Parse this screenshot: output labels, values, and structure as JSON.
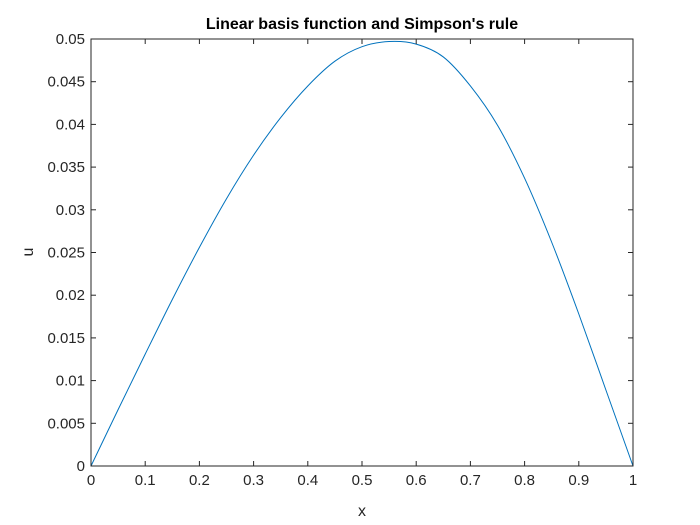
{
  "chart_data": {
    "type": "line",
    "title": "Linear basis function and Simpson's rule",
    "xlabel": "x",
    "ylabel": "u",
    "xlim": [
      0,
      1
    ],
    "ylim": [
      0,
      0.05
    ],
    "xticks": [
      0,
      0.1,
      0.2,
      0.3,
      0.4,
      0.5,
      0.6,
      0.7,
      0.8,
      0.9,
      1
    ],
    "xtick_labels": [
      "0",
      "0.1",
      "0.2",
      "0.3",
      "0.4",
      "0.5",
      "0.6",
      "0.7",
      "0.8",
      "0.9",
      "1"
    ],
    "yticks": [
      0,
      0.005,
      0.01,
      0.015,
      0.02,
      0.025,
      0.03,
      0.035,
      0.04,
      0.045,
      0.05
    ],
    "ytick_labels": [
      "0",
      "0.005",
      "0.01",
      "0.015",
      "0.02",
      "0.025",
      "0.03",
      "0.035",
      "0.04",
      "0.045",
      "0.05"
    ],
    "grid": false,
    "series": [
      {
        "color": "#0072BD",
        "x": [
          0,
          0.05,
          0.1,
          0.15,
          0.2,
          0.25,
          0.3,
          0.35,
          0.4,
          0.45,
          0.5,
          0.55,
          0.6,
          0.65,
          0.7,
          0.75,
          0.8,
          0.85,
          0.9,
          0.95,
          1
        ],
        "y": [
          0,
          0.0066,
          0.0131,
          0.0195,
          0.0256,
          0.0313,
          0.0364,
          0.0408,
          0.0445,
          0.0474,
          0.0491,
          0.0497,
          0.0494,
          0.0479,
          0.0445,
          0.0399,
          0.0337,
          0.0262,
          0.0178,
          0.0089,
          0
        ]
      }
    ]
  }
}
